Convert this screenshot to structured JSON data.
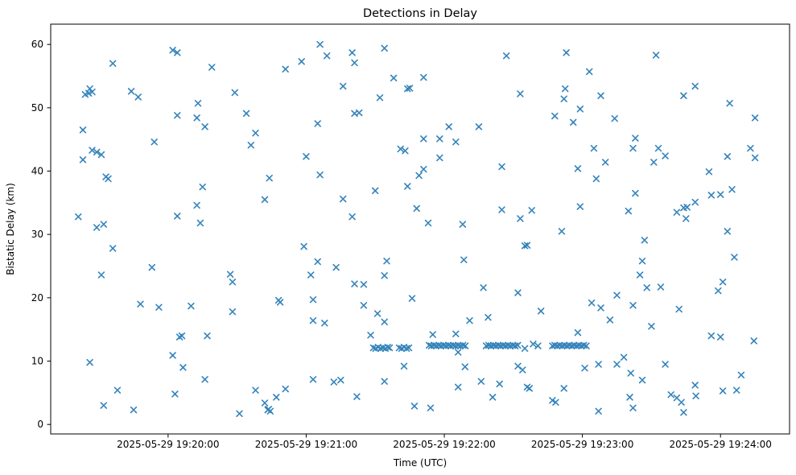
{
  "figure": {
    "title": "Detections in Delay"
  },
  "chart_data": {
    "type": "scatter",
    "title": "Detections in Delay",
    "xlabel": "Time (UTC)",
    "ylabel": "Bistatic Delay (km)",
    "marker": "x",
    "marker_color": "#1f77b4",
    "grid": false,
    "legend": null,
    "x_unit": "seconds since 2025-05-29 19:20:00 UTC",
    "xlim": [
      -51,
      270
    ],
    "ylim": [
      -1.5,
      63.2
    ],
    "x_ticks": [
      {
        "t": 0,
        "label": "2025-05-29 19:20:00"
      },
      {
        "t": 60,
        "label": "2025-05-29 19:21:00"
      },
      {
        "t": 120,
        "label": "2025-05-29 19:22:00"
      },
      {
        "t": 180,
        "label": "2025-05-29 19:23:00"
      },
      {
        "t": 240,
        "label": "2025-05-29 19:24:00"
      }
    ],
    "y_ticks": [
      0,
      10,
      20,
      30,
      40,
      50,
      60
    ],
    "points": [
      [
        2,
        59.1
      ],
      [
        4,
        58.7
      ],
      [
        -24,
        57
      ],
      [
        19,
        56.4
      ],
      [
        -34,
        53
      ],
      [
        -36,
        52.1
      ],
      [
        -33,
        52.5
      ],
      [
        -34.5,
        52.3
      ],
      [
        -16,
        52.6
      ],
      [
        -13,
        51.7
      ],
      [
        13,
        50.7
      ],
      [
        4,
        48.8
      ],
      [
        12.5,
        48.4
      ],
      [
        16,
        47
      ],
      [
        -37,
        46.5
      ],
      [
        -6,
        44.6
      ],
      [
        -33,
        43.3
      ],
      [
        -31,
        43
      ],
      [
        -29,
        42.6
      ],
      [
        66,
        60
      ],
      [
        69,
        58.2
      ],
      [
        80,
        58.7
      ],
      [
        81,
        57.1
      ],
      [
        94,
        59.4
      ],
      [
        58,
        57.3
      ],
      [
        51,
        56.1
      ],
      [
        76,
        53.4
      ],
      [
        98,
        54.7
      ],
      [
        104,
        53
      ],
      [
        105,
        53.1
      ],
      [
        92,
        51.6
      ],
      [
        29,
        52.4
      ],
      [
        34,
        49.1
      ],
      [
        65,
        47.5
      ],
      [
        81,
        49.1
      ],
      [
        83,
        49.2
      ],
      [
        38,
        46
      ],
      [
        36,
        44.1
      ],
      [
        101,
        43.5
      ],
      [
        103,
        43.2
      ],
      [
        60,
        42.3
      ],
      [
        147,
        58.2
      ],
      [
        173,
        58.7
      ],
      [
        183,
        55.7
      ],
      [
        111,
        54.8
      ],
      [
        153,
        52.2
      ],
      [
        172.5,
        53
      ],
      [
        172,
        51.4
      ],
      [
        188,
        51.9
      ],
      [
        179,
        49.8
      ],
      [
        168,
        48.7
      ],
      [
        176,
        47.7
      ],
      [
        122,
        47
      ],
      [
        135,
        47
      ],
      [
        111,
        45.1
      ],
      [
        118,
        45.1
      ],
      [
        125,
        44.6
      ],
      [
        185,
        43.6
      ],
      [
        118,
        42.1
      ],
      [
        212,
        58.3
      ],
      [
        229,
        53.4
      ],
      [
        224,
        51.9
      ],
      [
        244,
        50.7
      ],
      [
        194,
        48.3
      ],
      [
        255,
        48.4
      ],
      [
        203,
        45.2
      ],
      [
        202,
        43.6
      ],
      [
        213,
        43.6
      ],
      [
        216,
        42.4
      ],
      [
        243,
        42.3
      ],
      [
        253,
        43.6
      ],
      [
        255,
        42.1
      ],
      [
        190,
        41.4
      ],
      [
        211,
        41.4
      ],
      [
        -37,
        41.8
      ],
      [
        -27,
        39.1
      ],
      [
        -26,
        38.8
      ],
      [
        15,
        37.5
      ],
      [
        12.5,
        34.6
      ],
      [
        -39,
        32.8
      ],
      [
        4,
        32.9
      ],
      [
        14,
        31.8
      ],
      [
        -31,
        31.1
      ],
      [
        -28,
        31.6
      ],
      [
        -24,
        27.8
      ],
      [
        -7,
        24.8
      ],
      [
        -29,
        23.6
      ],
      [
        27,
        23.7
      ],
      [
        28,
        22.5
      ],
      [
        44,
        38.9
      ],
      [
        66,
        39.4
      ],
      [
        42,
        35.5
      ],
      [
        76,
        35.6
      ],
      [
        90,
        36.9
      ],
      [
        104,
        37.6
      ],
      [
        109,
        39.3
      ],
      [
        108,
        34.1
      ],
      [
        80,
        32.8
      ],
      [
        59,
        28.1
      ],
      [
        65,
        25.7
      ],
      [
        73,
        24.8
      ],
      [
        62,
        23.6
      ],
      [
        95,
        25.8
      ],
      [
        94,
        23.5
      ],
      [
        81,
        22.2
      ],
      [
        85,
        22.1
      ],
      [
        111,
        40.3
      ],
      [
        145,
        40.7
      ],
      [
        178,
        40.4
      ],
      [
        186,
        38.8
      ],
      [
        145,
        33.9
      ],
      [
        158,
        33.8
      ],
      [
        153,
        32.5
      ],
      [
        179,
        34.4
      ],
      [
        113,
        31.8
      ],
      [
        128,
        31.6
      ],
      [
        171,
        30.5
      ],
      [
        155,
        28.2
      ],
      [
        156,
        28.3
      ],
      [
        128.5,
        26
      ],
      [
        137,
        21.6
      ],
      [
        152,
        20.8
      ],
      [
        235,
        39.9
      ],
      [
        203,
        36.5
      ],
      [
        245,
        37.1
      ],
      [
        236,
        36.2
      ],
      [
        240,
        36.3
      ],
      [
        229,
        35.1
      ],
      [
        200,
        33.7
      ],
      [
        224,
        34.2
      ],
      [
        225.5,
        34.3
      ],
      [
        221,
        33.5
      ],
      [
        225,
        32.5
      ],
      [
        243,
        30.5
      ],
      [
        207,
        29.1
      ],
      [
        206,
        25.8
      ],
      [
        246,
        26.4
      ],
      [
        205,
        23.6
      ],
      [
        208,
        21.6
      ],
      [
        214,
        21.7
      ],
      [
        241,
        22.5
      ],
      [
        239,
        21.1
      ],
      [
        195,
        20.4
      ],
      [
        -12,
        19
      ],
      [
        -4,
        18.5
      ],
      [
        10,
        18.7
      ],
      [
        28,
        17.8
      ],
      [
        5,
        13.8
      ],
      [
        6,
        14
      ],
      [
        17,
        14
      ],
      [
        -34,
        9.8
      ],
      [
        2,
        10.9
      ],
      [
        6.5,
        9
      ],
      [
        16,
        7.1
      ],
      [
        -22,
        5.4
      ],
      [
        3,
        4.8
      ],
      [
        -28,
        3
      ],
      [
        -15,
        2.3
      ],
      [
        48,
        19.6
      ],
      [
        48.7,
        19.3
      ],
      [
        63,
        19.7
      ],
      [
        63,
        16.4
      ],
      [
        68,
        16
      ],
      [
        85,
        18.8
      ],
      [
        91,
        17.5
      ],
      [
        94,
        16.2
      ],
      [
        106,
        19.9
      ],
      [
        88,
        14.1
      ],
      [
        89.2,
        12.1
      ],
      [
        90.2,
        12
      ],
      [
        91.2,
        12.2
      ],
      [
        92.3,
        12
      ],
      [
        93.3,
        12.1
      ],
      [
        94.4,
        12
      ],
      [
        95.4,
        12.2
      ],
      [
        96.2,
        12.1
      ],
      [
        100.4,
        12.1
      ],
      [
        101.5,
        12
      ],
      [
        102.5,
        12.2
      ],
      [
        103.6,
        12
      ],
      [
        104.6,
        12.1
      ],
      [
        102.5,
        9.2
      ],
      [
        63,
        7.1
      ],
      [
        72,
        6.7
      ],
      [
        75,
        7
      ],
      [
        94,
        6.8
      ],
      [
        38,
        5.4
      ],
      [
        51,
        5.6
      ],
      [
        47,
        4.3
      ],
      [
        42,
        3.4
      ],
      [
        43.7,
        2.4
      ],
      [
        44.4,
        2.1
      ],
      [
        43.3,
        2.3
      ],
      [
        31,
        1.7
      ],
      [
        82,
        4.4
      ],
      [
        162,
        17.9
      ],
      [
        184,
        19.2
      ],
      [
        188,
        18.4
      ],
      [
        131,
        16.4
      ],
      [
        139,
        16.9
      ],
      [
        178,
        14.5
      ],
      [
        115,
        14.2
      ],
      [
        125,
        14.3
      ],
      [
        113.4,
        12.5
      ],
      [
        114.4,
        12.4
      ],
      [
        115.5,
        12.5
      ],
      [
        116.5,
        12.4
      ],
      [
        117.6,
        12.5
      ],
      [
        118.6,
        12.4
      ],
      [
        119.7,
        12.5
      ],
      [
        120.7,
        12.4
      ],
      [
        121.8,
        12.5
      ],
      [
        122.8,
        12.4
      ],
      [
        123.9,
        12.5
      ],
      [
        124.9,
        12.4
      ],
      [
        126,
        12.5
      ],
      [
        127,
        12.4
      ],
      [
        128.1,
        12.5
      ],
      [
        129.1,
        12.4
      ],
      [
        126,
        11.4
      ],
      [
        138.2,
        12.4
      ],
      [
        139.3,
        12.5
      ],
      [
        140.3,
        12.4
      ],
      [
        141.4,
        12.5
      ],
      [
        142.4,
        12.4
      ],
      [
        143.5,
        12.5
      ],
      [
        144.5,
        12.4
      ],
      [
        145.6,
        12.5
      ],
      [
        146.6,
        12.4
      ],
      [
        147.7,
        12.5
      ],
      [
        148.7,
        12.4
      ],
      [
        149.8,
        12.5
      ],
      [
        150.8,
        12.4
      ],
      [
        151.9,
        12.5
      ],
      [
        155,
        12
      ],
      [
        158.6,
        12.7
      ],
      [
        160.7,
        12.4
      ],
      [
        167,
        12.4
      ],
      [
        168,
        12.5
      ],
      [
        169.1,
        12.4
      ],
      [
        170.1,
        12.5
      ],
      [
        171.2,
        12.4
      ],
      [
        172.2,
        12.5
      ],
      [
        173.3,
        12.4
      ],
      [
        174.3,
        12.5
      ],
      [
        175.4,
        12.4
      ],
      [
        176.4,
        12.5
      ],
      [
        177.5,
        12.4
      ],
      [
        178.5,
        12.5
      ],
      [
        179.6,
        12.4
      ],
      [
        180.6,
        12.5
      ],
      [
        181.7,
        12.4
      ],
      [
        129,
        9.1
      ],
      [
        152,
        9.2
      ],
      [
        154,
        8.6
      ],
      [
        181,
        8.9
      ],
      [
        187,
        9.5
      ],
      [
        136,
        6.8
      ],
      [
        144,
        6.4
      ],
      [
        126,
        5.9
      ],
      [
        156,
        5.9
      ],
      [
        157,
        5.7
      ],
      [
        172,
        5.7
      ],
      [
        141,
        4.3
      ],
      [
        167,
        3.8
      ],
      [
        168.4,
        3.5
      ],
      [
        107,
        2.9
      ],
      [
        114,
        2.6
      ],
      [
        202,
        18.8
      ],
      [
        222,
        18.2
      ],
      [
        192,
        16.5
      ],
      [
        210,
        15.5
      ],
      [
        236,
        14
      ],
      [
        240,
        13.8
      ],
      [
        254.5,
        13.2
      ],
      [
        198,
        10.6
      ],
      [
        195,
        9.5
      ],
      [
        216,
        9.5
      ],
      [
        201,
        8.1
      ],
      [
        206,
        7
      ],
      [
        249,
        7.8
      ],
      [
        229,
        6.2
      ],
      [
        229.3,
        4.5
      ],
      [
        241,
        5.3
      ],
      [
        247,
        5.4
      ],
      [
        218.5,
        4.7
      ],
      [
        221,
        4.2
      ],
      [
        223,
        3.5
      ],
      [
        200.6,
        4.3
      ],
      [
        202,
        2.6
      ],
      [
        224,
        1.9
      ],
      [
        187,
        2.1
      ]
    ]
  }
}
